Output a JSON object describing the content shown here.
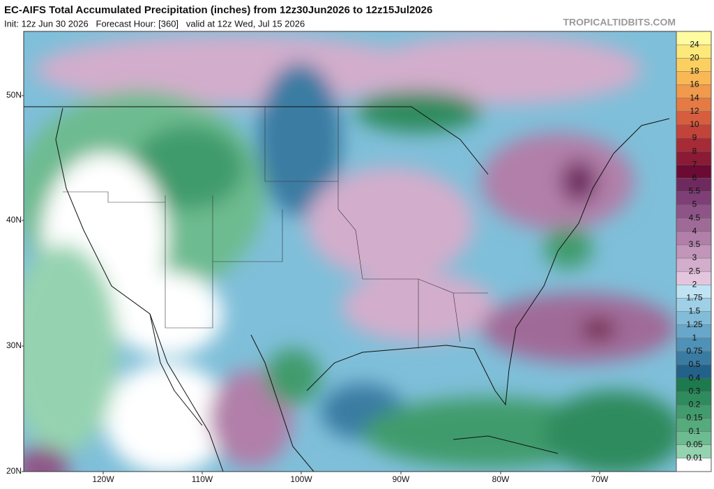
{
  "header": {
    "title": "EC-AIFS Total Accumulated Precipitation (inches) from 12z30Jun2026 to 12z15Jul2026",
    "subtitle": "Init: 12z Jun 30 2026   Forecast Hour: [360]   valid at 12z Wed, Jul 15 2026",
    "site": "TROPICALTIDBITS.COM"
  },
  "map": {
    "lat_labels": [
      "50N",
      "40N",
      "30N",
      "20N"
    ],
    "lon_labels": [
      "120W",
      "110W",
      "100W",
      "90W",
      "80W",
      "70W"
    ]
  },
  "colorbar": {
    "labels": [
      "24",
      "20",
      "18",
      "16",
      "14",
      "12",
      "10",
      "9",
      "8",
      "7",
      "6",
      "5.5",
      "5",
      "4.5",
      "4",
      "3.5",
      "3",
      "2.5",
      "2",
      "1.75",
      "1.5",
      "1.25",
      "1",
      "0.75",
      "0.5",
      "0.4",
      "0.3",
      "0.2",
      "0.15",
      "0.1",
      "0.05",
      "0.01"
    ],
    "colors": [
      "#fffba0",
      "#fde97a",
      "#fbd060",
      "#f9b855",
      "#f19a4c",
      "#e57a45",
      "#d65e3f",
      "#c2433a",
      "#a62b36",
      "#8b1a35",
      "#6b0a33",
      "#6e2a5e",
      "#7e3f76",
      "#8f5487",
      "#a06a98",
      "#b17fa9",
      "#c295ba",
      "#d3adcc",
      "#e3c6de",
      "#bfe3f3",
      "#9fd0e8",
      "#82bcd9",
      "#68a7c9",
      "#4f91b7",
      "#3a7ba3",
      "#22628a",
      "#1d7a4e",
      "#2e8b5d",
      "#419b6c",
      "#56ab7d",
      "#6dbb90",
      "#95d3b0",
      "#ffffff"
    ]
  }
}
